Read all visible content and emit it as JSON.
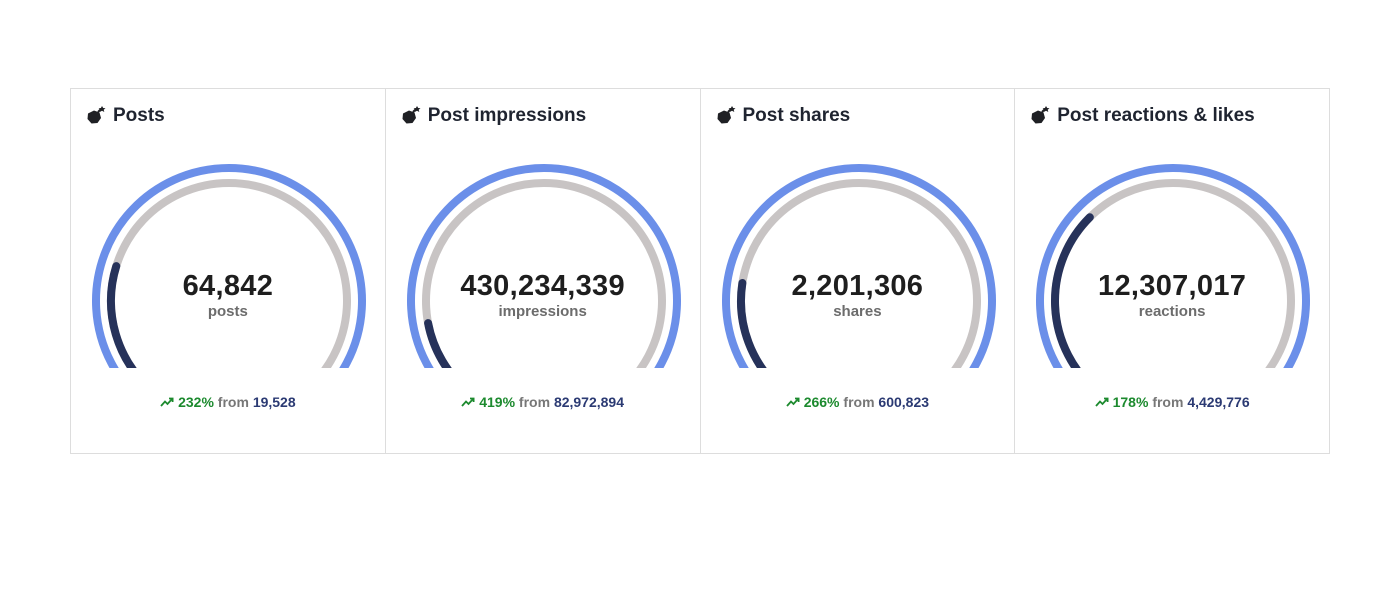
{
  "colors": {
    "outer_arc": "#6b8fe9",
    "track_arc": "#c8c4c4",
    "fill_arc": "#26325a",
    "positive": "#1c8a2e",
    "previous_value": "#2b3a73"
  },
  "cards": [
    {
      "title": "Posts",
      "icon": "bomb-icon",
      "value": "64,842",
      "unit": "posts",
      "change_pct": "232%",
      "from_label": "from",
      "previous": "19,528",
      "gauge_fill": 0.24
    },
    {
      "title": "Post impressions",
      "icon": "bomb-icon",
      "value": "430,234,339",
      "unit": "impressions",
      "change_pct": "419%",
      "from_label": "from",
      "previous": "82,972,894",
      "gauge_fill": 0.14
    },
    {
      "title": "Post shares",
      "icon": "bomb-icon",
      "value": "2,201,306",
      "unit": "shares",
      "change_pct": "266%",
      "from_label": "from",
      "previous": "600,823",
      "gauge_fill": 0.21
    },
    {
      "title": "Post reactions & likes",
      "icon": "bomb-icon",
      "value": "12,307,017",
      "unit": "reactions",
      "change_pct": "178%",
      "from_label": "from",
      "previous": "4,429,776",
      "gauge_fill": 0.34
    }
  ]
}
